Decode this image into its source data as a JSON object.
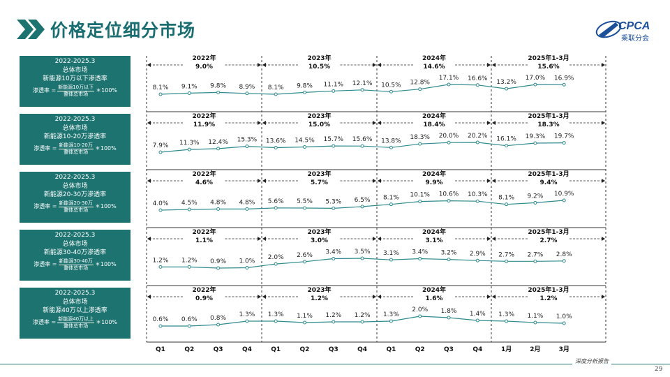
{
  "title": "价格定位细分市场",
  "logo": {
    "text": "CPCA",
    "subtitle": "乘联分会"
  },
  "footer": {
    "text": "深度分析报告",
    "page": "29"
  },
  "x_labels": [
    "Q1",
    "Q2",
    "Q3",
    "Q4",
    "Q1",
    "Q2",
    "Q3",
    "Q4",
    "Q1",
    "Q2",
    "Q3",
    "Q4",
    "1月",
    "2月",
    "3月"
  ],
  "colors": {
    "accent": "#1d7370",
    "line": "#2e8a8e",
    "marker_fill": "#ffffff"
  },
  "chart_data": [
    {
      "type": "line",
      "label": {
        "line1": "2022-2025.3",
        "line2": "总体市场",
        "line3": "新能源10万以下渗透率",
        "formula_prefix": "渗透率 =",
        "formula_num": "新能源10万以下",
        "formula_den": "整体总市场",
        "formula_suffix": "＊100%"
      },
      "periods": [
        {
          "year": "2022年",
          "value": "9.0%"
        },
        {
          "year": "2023年",
          "value": "10.5%"
        },
        {
          "year": "2024年",
          "value": "14.6%"
        },
        {
          "year": "2025年1-3月",
          "value": "15.6%"
        }
      ],
      "values": [
        8.1,
        9.1,
        9.8,
        8.9,
        8.1,
        9.8,
        11.1,
        12.1,
        10.5,
        12.8,
        17.1,
        16.6,
        13.2,
        17.0,
        16.9
      ],
      "labels": [
        "8.1%",
        "9.1%",
        "9.8%",
        "8.9%",
        "8.1%",
        "9.8%",
        "11.1%",
        "12.1%",
        "10.5%",
        "12.8%",
        "17.1%",
        "16.6%",
        "13.2%",
        "17.0%",
        "16.9%"
      ]
    },
    {
      "type": "line",
      "label": {
        "line1": "2022-2025.3",
        "line2": "总体市场",
        "line3": "新能源10-20万渗透率",
        "formula_prefix": "渗透率 =",
        "formula_num": "新能源10-20万",
        "formula_den": "整体总市场",
        "formula_suffix": "＊100%"
      },
      "periods": [
        {
          "year": "2022年",
          "value": "11.9%"
        },
        {
          "year": "2023年",
          "value": "15.0%"
        },
        {
          "year": "2024年",
          "value": "18.4%"
        },
        {
          "year": "2025年1-3月",
          "value": "18.3%"
        }
      ],
      "values": [
        7.9,
        11.3,
        12.4,
        15.3,
        13.6,
        14.5,
        15.7,
        15.6,
        13.8,
        18.3,
        20.0,
        20.2,
        16.1,
        19.3,
        19.7
      ],
      "labels": [
        "7.9%",
        "11.3%",
        "12.4%",
        "15.3%",
        "13.6%",
        "14.5%",
        "15.7%",
        "15.6%",
        "13.8%",
        "18.3%",
        "20.0%",
        "20.2%",
        "16.1%",
        "19.3%",
        "19.7%"
      ]
    },
    {
      "type": "line",
      "label": {
        "line1": "2022-2025.3",
        "line2": "总体市场",
        "line3": "新能源20-30万渗透率",
        "formula_prefix": "渗透率 =",
        "formula_num": "新能源20-30万",
        "formula_den": "整体总市场",
        "formula_suffix": "＊100%"
      },
      "periods": [
        {
          "year": "2022年",
          "value": "4.6%"
        },
        {
          "year": "2023年",
          "value": "5.7%"
        },
        {
          "year": "2024年",
          "value": "9.9%"
        },
        {
          "year": "2025年1-3月",
          "value": "9.4%"
        }
      ],
      "values": [
        4.0,
        4.5,
        4.8,
        4.8,
        5.6,
        5.5,
        5.3,
        6.5,
        8.1,
        10.1,
        10.6,
        10.3,
        8.1,
        9.2,
        10.9
      ],
      "labels": [
        "4.0%",
        "4.5%",
        "4.8%",
        "4.8%",
        "5.6%",
        "5.5%",
        "5.3%",
        "6.5%",
        "8.1%",
        "10.1%",
        "10.6%",
        "10.3%",
        "8.1%",
        "9.2%",
        "10.9%"
      ]
    },
    {
      "type": "line",
      "label": {
        "line1": "2022-2025.3",
        "line2": "总体市场",
        "line3": "新能源30-40万渗透率",
        "formula_prefix": "渗透率 =",
        "formula_num": "新能源30-40万",
        "formula_den": "整体总市场",
        "formula_suffix": "＊100%"
      },
      "periods": [
        {
          "year": "2022年",
          "value": "1.1%"
        },
        {
          "year": "2023年",
          "value": "3.0%"
        },
        {
          "year": "2024年",
          "value": "3.1%"
        },
        {
          "year": "2025年1-3月",
          "value": "2.7%"
        }
      ],
      "values": [
        1.2,
        1.2,
        0.9,
        1.0,
        2.0,
        2.6,
        3.4,
        3.5,
        3.1,
        3.4,
        3.2,
        2.9,
        2.7,
        2.7,
        2.8
      ],
      "labels": [
        "1.2%",
        "1.2%",
        "0.9%",
        "1.0%",
        "2.0%",
        "2.6%",
        "3.4%",
        "3.5%",
        "3.1%",
        "3.4%",
        "3.2%",
        "2.9%",
        "2.7%",
        "2.7%",
        "2.8%"
      ]
    },
    {
      "type": "line",
      "label": {
        "line1": "2022-2025.3",
        "line2": "总体市场",
        "line3": "新能源40万以上渗透率",
        "formula_prefix": "渗透率 =",
        "formula_num": "新能源40万以上",
        "formula_den": "整体总市场",
        "formula_suffix": "＊100%"
      },
      "periods": [
        {
          "year": "2022年",
          "value": "0.9%"
        },
        {
          "year": "2023年",
          "value": "1.2%"
        },
        {
          "year": "2024年",
          "value": "1.6%"
        },
        {
          "year": "2025年1-3月",
          "value": "1.2%"
        }
      ],
      "values": [
        0.6,
        0.6,
        0.8,
        1.3,
        1.3,
        1.1,
        1.2,
        1.2,
        1.3,
        2.0,
        1.8,
        1.4,
        1.3,
        1.1,
        1.0
      ],
      "labels": [
        "0.6%",
        "0.6%",
        "0.8%",
        "1.3%",
        "1.3%",
        "1.1%",
        "1.2%",
        "1.2%",
        "1.3%",
        "2.0%",
        "1.8%",
        "1.4%",
        "1.3%",
        "1.1%",
        "1.0%"
      ]
    }
  ]
}
